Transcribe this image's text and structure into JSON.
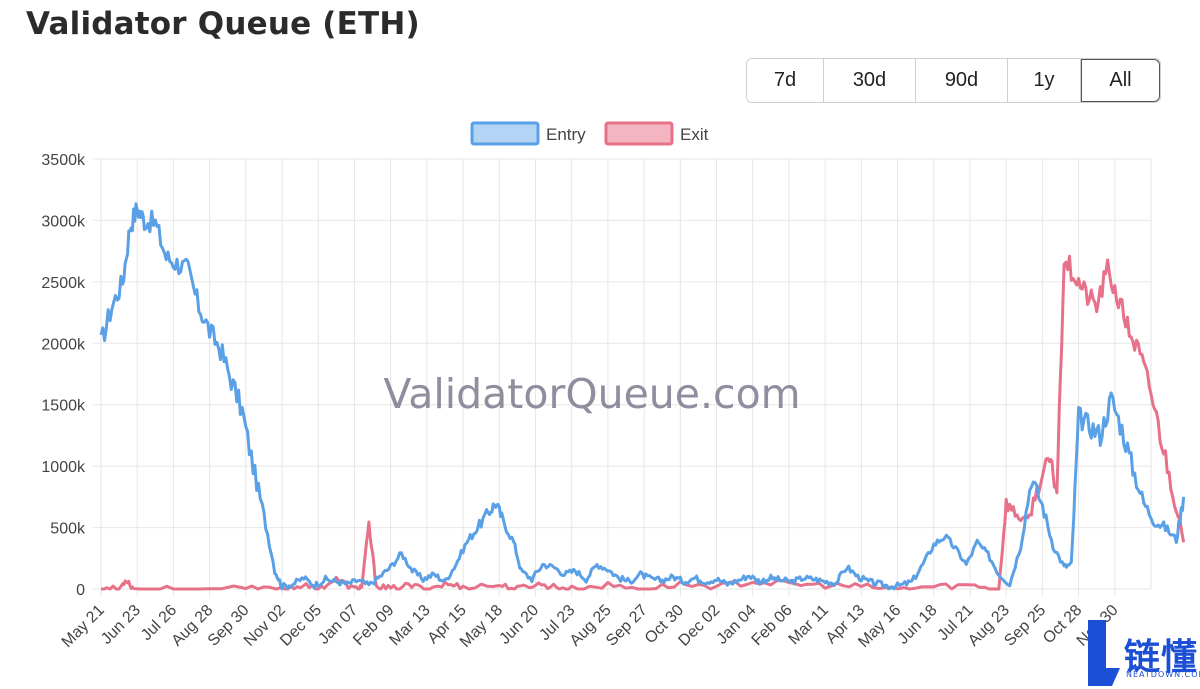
{
  "page": {
    "title": "Validator Queue (ETH)"
  },
  "range_selector": {
    "options": [
      {
        "label": "7d",
        "active": false
      },
      {
        "label": "30d",
        "active": false
      },
      {
        "label": "90d",
        "active": false
      },
      {
        "label": "1y",
        "active": false
      },
      {
        "label": "All",
        "active": true
      }
    ]
  },
  "watermark": "ValidatorQueue.com",
  "brand": {
    "name": "链懂",
    "sub": "NEATDOWN.COM"
  },
  "colors": {
    "entry": "#5aa0e6",
    "entry_fill": "#b3d4f5",
    "exit": "#e8718a",
    "exit_fill": "#f4b5c2",
    "grid": "#e6e6e6"
  },
  "chart_data": {
    "type": "line",
    "title": "",
    "xlabel": "",
    "ylabel": "",
    "ylim": [
      0,
      3500
    ],
    "y_ticks": [
      "0",
      "500k",
      "1000k",
      "1500k",
      "2000k",
      "2500k",
      "3000k",
      "3500k"
    ],
    "x_tick_labels": [
      "May 21",
      "Jun 23",
      "Jul 26",
      "Aug 28",
      "Sep 30",
      "Nov 02",
      "Dec 05",
      "Jan 07",
      "Feb 09",
      "Mar 13",
      "Apr 15",
      "May 18",
      "Jun 20",
      "Jul 23",
      "Aug 25",
      "Sep 27",
      "Oct 30",
      "Dec 02",
      "Jan 04",
      "Feb 06",
      "Mar 11",
      "Apr 13",
      "May 16",
      "Jun 18",
      "Jul 21",
      "Aug 23",
      "Sep 25",
      "Oct 28",
      "Nov 30"
    ],
    "grid": true,
    "legend_position": "top-center",
    "series": [
      {
        "name": "Entry",
        "points": [
          [
            0,
            2000
          ],
          [
            0.3,
            2300
          ],
          [
            0.6,
            2500
          ],
          [
            0.8,
            2950
          ],
          [
            1.0,
            3100
          ],
          [
            1.2,
            3000
          ],
          [
            1.5,
            2980
          ],
          [
            1.8,
            2700
          ],
          [
            2.1,
            2650
          ],
          [
            2.4,
            2600
          ],
          [
            2.7,
            2300
          ],
          [
            3.0,
            2100
          ],
          [
            3.3,
            1950
          ],
          [
            3.6,
            1700
          ],
          [
            3.9,
            1450
          ],
          [
            4.2,
            1000
          ],
          [
            4.5,
            600
          ],
          [
            4.8,
            150
          ],
          [
            5.0,
            20
          ],
          [
            5.3,
            40
          ],
          [
            5.6,
            90
          ],
          [
            5.9,
            30
          ],
          [
            6.2,
            80
          ],
          [
            6.5,
            60
          ],
          [
            6.8,
            40
          ],
          [
            7.1,
            70
          ],
          [
            7.4,
            30
          ],
          [
            7.7,
            100
          ],
          [
            8.0,
            180
          ],
          [
            8.3,
            290
          ],
          [
            8.6,
            150
          ],
          [
            8.9,
            80
          ],
          [
            9.2,
            120
          ],
          [
            9.5,
            60
          ],
          [
            9.8,
            200
          ],
          [
            10.1,
            380
          ],
          [
            10.4,
            500
          ],
          [
            10.7,
            620
          ],
          [
            10.9,
            700
          ],
          [
            11.1,
            560
          ],
          [
            11.4,
            380
          ],
          [
            11.6,
            150
          ],
          [
            11.9,
            80
          ],
          [
            12.2,
            200
          ],
          [
            12.5,
            180
          ],
          [
            12.8,
            120
          ],
          [
            13.1,
            150
          ],
          [
            13.4,
            80
          ],
          [
            13.7,
            200
          ],
          [
            14.0,
            160
          ],
          [
            14.3,
            90
          ],
          [
            14.6,
            60
          ],
          [
            14.9,
            120
          ],
          [
            15.2,
            80
          ],
          [
            15.5,
            70
          ],
          [
            15.8,
            100
          ],
          [
            16.1,
            60
          ],
          [
            16.4,
            90
          ],
          [
            16.7,
            60
          ],
          [
            17.0,
            80
          ],
          [
            17.3,
            40
          ],
          [
            17.6,
            70
          ],
          [
            17.9,
            110
          ],
          [
            18.2,
            60
          ],
          [
            18.5,
            90
          ],
          [
            18.8,
            70
          ],
          [
            19.1,
            60
          ],
          [
            19.4,
            90
          ],
          [
            19.7,
            80
          ],
          [
            20.0,
            60
          ],
          [
            20.3,
            50
          ],
          [
            20.6,
            180
          ],
          [
            20.9,
            100
          ],
          [
            21.2,
            60
          ],
          [
            21.5,
            40
          ],
          [
            21.8,
            20
          ],
          [
            22.1,
            30
          ],
          [
            22.4,
            60
          ],
          [
            22.7,
            200
          ],
          [
            23.0,
            360
          ],
          [
            23.3,
            430
          ],
          [
            23.6,
            330
          ],
          [
            23.9,
            200
          ],
          [
            24.2,
            380
          ],
          [
            24.5,
            280
          ],
          [
            24.8,
            120
          ],
          [
            25.1,
            40
          ],
          [
            25.4,
            350
          ],
          [
            25.7,
            900
          ],
          [
            26.0,
            680
          ],
          [
            26.3,
            350
          ],
          [
            26.6,
            180
          ],
          [
            26.8,
            200
          ],
          [
            27.0,
            1400
          ],
          [
            27.3,
            1330
          ],
          [
            27.6,
            1250
          ],
          [
            27.9,
            1550
          ],
          [
            28.2,
            1300
          ],
          [
            28.5,
            980
          ],
          [
            28.8,
            700
          ],
          [
            29.1,
            550
          ],
          [
            29.4,
            500
          ],
          [
            29.7,
            400
          ],
          [
            29.9,
            750
          ]
        ]
      },
      {
        "name": "Exit",
        "points": [
          [
            0,
            0
          ],
          [
            0.5,
            0
          ],
          [
            0.7,
            80
          ],
          [
            0.9,
            0
          ],
          [
            2,
            0
          ],
          [
            4,
            0
          ],
          [
            5,
            0
          ],
          [
            5.5,
            30
          ],
          [
            6,
            0
          ],
          [
            6.5,
            80
          ],
          [
            7,
            0
          ],
          [
            7.2,
            20
          ],
          [
            7.4,
            520
          ],
          [
            7.6,
            30
          ],
          [
            8,
            0
          ],
          [
            8.5,
            30
          ],
          [
            9,
            0
          ],
          [
            9.5,
            40
          ],
          [
            10,
            20
          ],
          [
            11,
            30
          ],
          [
            11.5,
            0
          ],
          [
            12,
            40
          ],
          [
            12.5,
            20
          ],
          [
            13,
            0
          ],
          [
            14,
            30
          ],
          [
            15,
            0
          ],
          [
            16,
            40
          ],
          [
            17,
            20
          ],
          [
            18,
            60
          ],
          [
            19,
            40
          ],
          [
            20,
            30
          ],
          [
            21,
            20
          ],
          [
            22,
            0
          ],
          [
            23,
            20
          ],
          [
            24,
            30
          ],
          [
            24.8,
            0
          ],
          [
            25.0,
            700
          ],
          [
            25.3,
            600
          ],
          [
            25.6,
            550
          ],
          [
            25.9,
            850
          ],
          [
            26.2,
            1050
          ],
          [
            26.4,
            800
          ],
          [
            26.6,
            2700
          ],
          [
            26.9,
            2550
          ],
          [
            27.2,
            2400
          ],
          [
            27.5,
            2300
          ],
          [
            27.8,
            2600
          ],
          [
            28.1,
            2350
          ],
          [
            28.4,
            2100
          ],
          [
            28.7,
            1900
          ],
          [
            29.0,
            1600
          ],
          [
            29.3,
            1200
          ],
          [
            29.6,
            800
          ],
          [
            29.9,
            380
          ]
        ]
      }
    ]
  }
}
